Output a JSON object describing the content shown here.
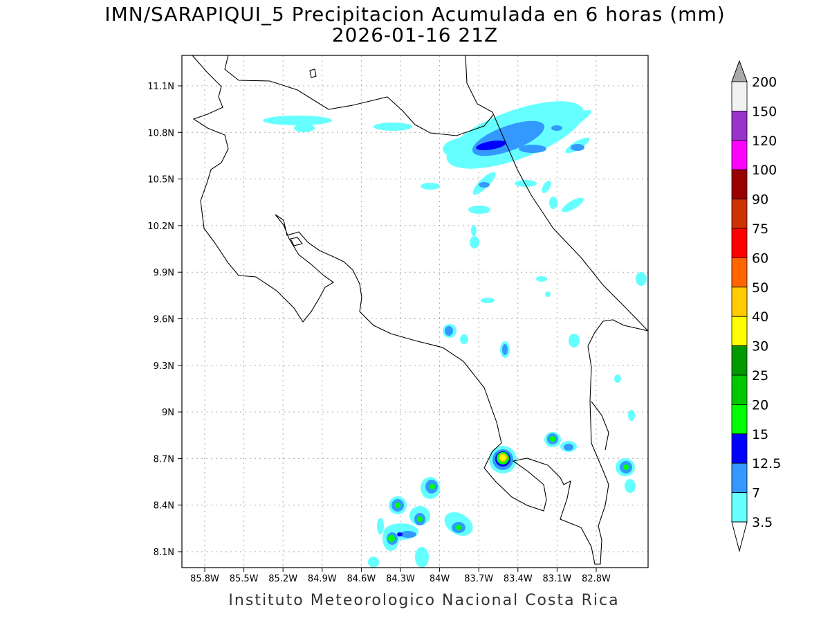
{
  "title": {
    "line1": "IMN/SARAPIQUI_5 Precipitacion Acumulada en 6 horas (mm)",
    "line2": "2026-01-16 21Z"
  },
  "axes": {
    "lon_labels": [
      "85.8W",
      "85.5W",
      "85.2W",
      "84.9W",
      "84.6W",
      "84.3W",
      "84W",
      "83.7W",
      "83.4W",
      "83.1W",
      "82.8W"
    ],
    "lat_labels": [
      "11.1N",
      "10.8N",
      "10.5N",
      "10.2N",
      "9.9N",
      "9.6N",
      "9.3N",
      "9N",
      "8.7N",
      "8.4N",
      "8.1N"
    ]
  },
  "colorbar": {
    "levels": [
      "200",
      "150",
      "120",
      "100",
      "90",
      "75",
      "60",
      "50",
      "40",
      "30",
      "25",
      "20",
      "15",
      "12.5",
      "7",
      "3.5"
    ],
    "colors": [
      "#f2f2f2",
      "#9933cc",
      "#ff00ff",
      "#990000",
      "#cc3300",
      "#ff0000",
      "#ff6600",
      "#ffcc00",
      "#ffff00",
      "#009900",
      "#00c800",
      "#00ff00",
      "#0000ff",
      "#3399ff",
      "#66ffff"
    ],
    "over_color": "#aaaaaa",
    "under_color": "#ffffff"
  },
  "footer": "Instituto Meteorologico Nacional Costa Rica"
}
